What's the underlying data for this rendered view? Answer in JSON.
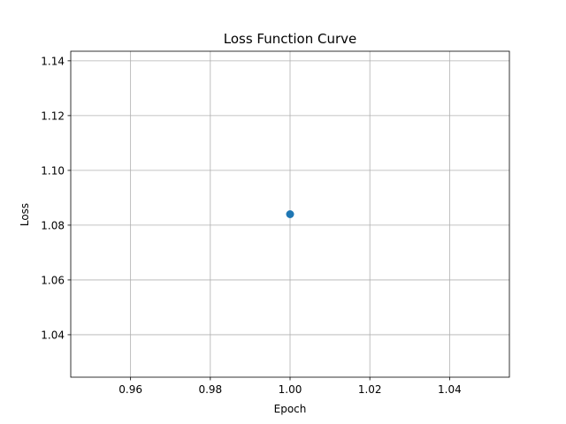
{
  "chart_data": {
    "type": "scatter",
    "title": "Loss Function Curve",
    "xlabel": "Epoch",
    "ylabel": "Loss",
    "xlim": [
      0.945,
      1.055
    ],
    "ylim": [
      1.0245,
      1.1435
    ],
    "xticks": [
      0.96,
      0.98,
      1.0,
      1.02,
      1.04
    ],
    "xtick_labels": [
      "0.96",
      "0.98",
      "1.00",
      "1.02",
      "1.04"
    ],
    "yticks": [
      1.04,
      1.06,
      1.08,
      1.1,
      1.12,
      1.14
    ],
    "ytick_labels": [
      "1.04",
      "1.06",
      "1.08",
      "1.10",
      "1.12",
      "1.14"
    ],
    "grid": true,
    "legend": false,
    "series": [
      {
        "color": "#1f77b4",
        "marker": "circle",
        "x": [
          1.0
        ],
        "y": [
          1.084
        ]
      }
    ]
  }
}
